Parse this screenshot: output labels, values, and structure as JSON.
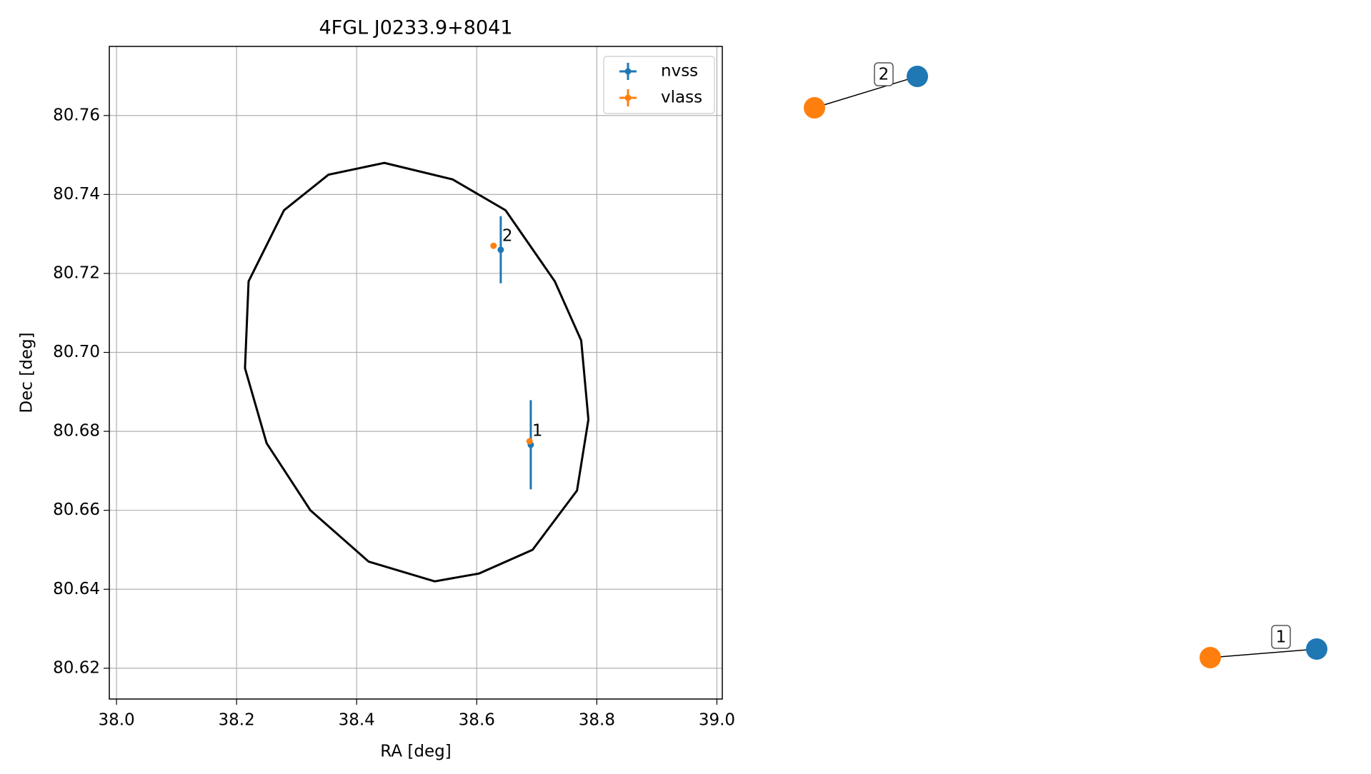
{
  "chart_data": [
    {
      "type": "errorbar_scatter",
      "title": "4FGL J0233.9+8041",
      "x_label": "RA [deg]",
      "y_label": "Dec [deg]",
      "xlim": [
        37.988,
        39.009
      ],
      "ylim": [
        80.6122,
        80.7775
      ],
      "xticks": [
        {
          "value": 38.0,
          "label": "38.0"
        },
        38.2,
        38.4,
        38.6,
        38.8,
        {
          "value": 39.0,
          "label": "39.0"
        }
      ],
      "yticks": [
        80.62,
        80.64,
        80.66,
        80.68,
        {
          "value": 80.7,
          "label": "80.70"
        },
        80.72,
        80.74,
        80.76
      ],
      "grid": true,
      "legend": "upper right",
      "series": [
        {
          "name": "nvss",
          "color": "#1f77b4",
          "x": [
            38.69,
            38.64
          ],
          "values": [
            80.6766,
            80.726
          ],
          "yerr": [
            0.0113,
            0.0085
          ]
        },
        {
          "name": "vlass",
          "color": "#ff7f0e",
          "x": [
            38.688,
            38.628
          ],
          "values": [
            80.6775,
            80.727
          ]
        }
      ],
      "point_labels": [
        "1",
        "2"
      ],
      "ellipse": {
        "color": "#000000",
        "x": [
          38.446,
          38.56,
          38.648,
          38.73,
          38.774,
          38.786,
          38.767,
          38.693,
          38.604,
          38.53,
          38.42,
          38.323,
          38.25,
          38.214,
          38.22,
          38.279,
          38.353
        ],
        "values": [
          80.748,
          80.7438,
          80.736,
          80.718,
          80.703,
          80.683,
          80.665,
          80.65,
          80.644,
          80.642,
          80.647,
          80.66,
          80.677,
          80.696,
          80.718,
          80.736,
          80.745
        ]
      }
    },
    {
      "type": "network",
      "edge_labels": [
        "2",
        "1"
      ],
      "node_colors": [
        "#1f77b4",
        "#ff7f0e"
      ]
    }
  ]
}
